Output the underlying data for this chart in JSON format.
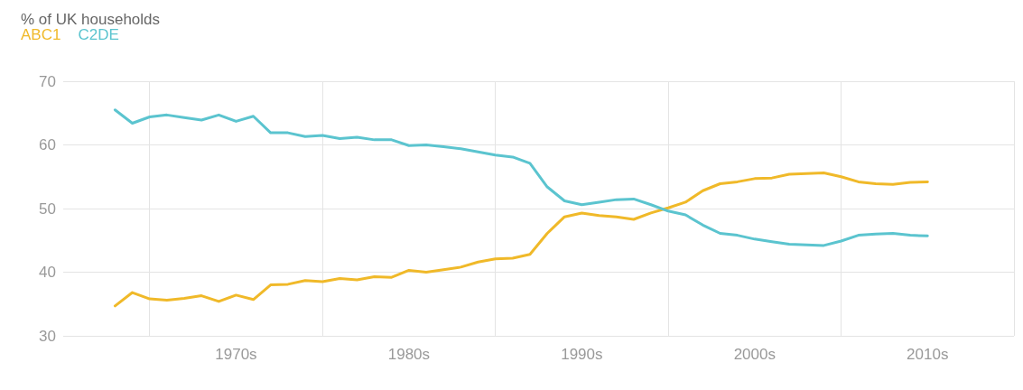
{
  "chart_data": {
    "type": "line",
    "title": "% of UK households",
    "categories": [
      null,
      null,
      null,
      null,
      null,
      null,
      null,
      null,
      null,
      null,
      "1970s",
      null,
      null,
      null,
      null,
      null,
      null,
      null,
      null,
      null,
      "1980s",
      null,
      null,
      null,
      null,
      null,
      null,
      null,
      null,
      null,
      "1990s",
      null,
      null,
      null,
      null,
      null,
      null,
      null,
      null,
      null,
      "2000s",
      null,
      null,
      null,
      null,
      null,
      null,
      null,
      null,
      null,
      "2010s",
      null,
      null,
      null,
      null,
      null
    ],
    "series": [
      {
        "name": "ABC1",
        "color": "#f0b929",
        "values": [
          null,
          null,
          null,
          34.7,
          36.8,
          35.8,
          35.6,
          35.9,
          36.3,
          35.4,
          36.4,
          35.7,
          38.0,
          38.1,
          38.7,
          38.5,
          39.0,
          38.8,
          39.3,
          39.2,
          40.3,
          40.0,
          40.4,
          40.8,
          41.6,
          42.1,
          42.2,
          42.8,
          46.1,
          48.7,
          49.3,
          48.9,
          48.7,
          48.3,
          49.3,
          50.1,
          51.0,
          52.8,
          53.9,
          54.2,
          54.7,
          54.8,
          55.4,
          55.5,
          55.6,
          55.0,
          54.2,
          53.9,
          53.8,
          54.1,
          54.2,
          null,
          null,
          null,
          null,
          null
        ]
      },
      {
        "name": "C2DE",
        "color": "#5bc4cf",
        "values": [
          null,
          null,
          null,
          65.5,
          63.4,
          64.4,
          64.7,
          64.3,
          63.9,
          64.7,
          63.7,
          64.5,
          61.9,
          61.9,
          61.3,
          61.5,
          61.0,
          61.2,
          60.8,
          60.8,
          59.9,
          60.0,
          59.7,
          59.4,
          58.9,
          58.4,
          58.1,
          57.1,
          53.4,
          51.2,
          50.6,
          51.0,
          51.4,
          51.5,
          50.6,
          49.6,
          49.0,
          47.4,
          46.1,
          45.8,
          45.2,
          44.8,
          44.4,
          44.3,
          44.2,
          44.9,
          45.8,
          46.0,
          46.1,
          45.8,
          45.7,
          null,
          null,
          null,
          null,
          null
        ]
      }
    ],
    "ylim": [
      30,
      70
    ],
    "yticks": [
      30,
      40,
      50,
      60,
      70
    ],
    "grid": true,
    "legend": "top left",
    "marker": "none",
    "line_style": "solid"
  }
}
